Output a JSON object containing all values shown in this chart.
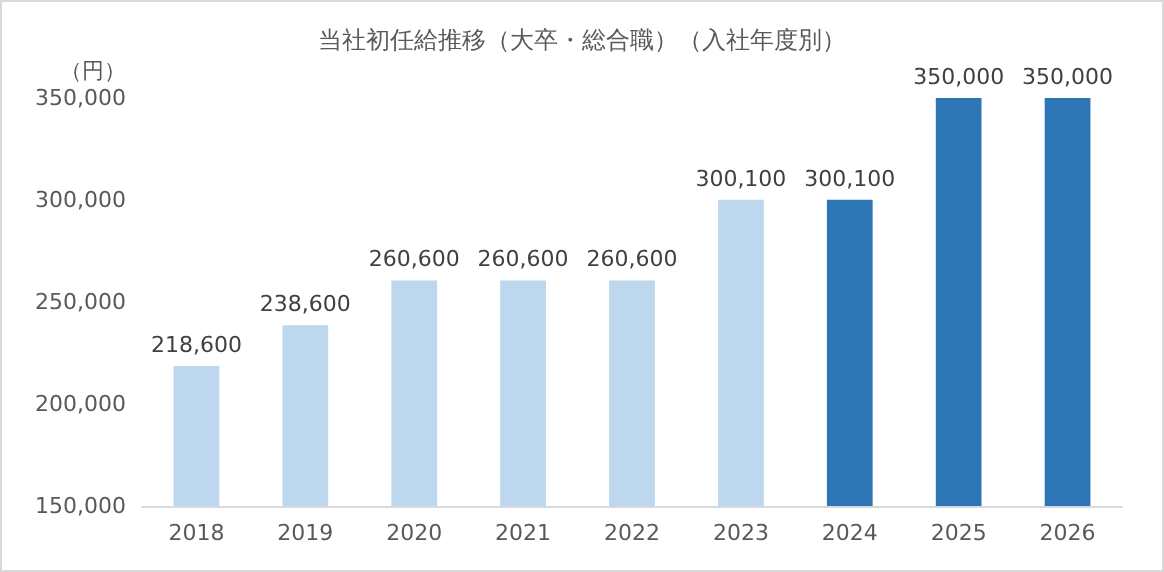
{
  "chart_data": {
    "type": "bar",
    "title": "当社初任給推移（大卒・総合職）（入社年度別）",
    "ylabel": "（円）",
    "categories": [
      "2018",
      "2019",
      "2020",
      "2021",
      "2022",
      "2023",
      "2024",
      "2025",
      "2026"
    ],
    "values": [
      218600,
      238600,
      260600,
      260600,
      260600,
      300100,
      300100,
      350000,
      350000
    ],
    "colors": [
      "#bdd7ee",
      "#bdd7ee",
      "#bdd7ee",
      "#bdd7ee",
      "#bdd7ee",
      "#bdd7ee",
      "#2e75b6",
      "#2e75b6",
      "#2e75b6"
    ],
    "value_labels": [
      "218,600",
      "238,600",
      "260,600",
      "260,600",
      "260,600",
      "300,100",
      "300,100",
      "350,000",
      "350,000"
    ],
    "ylim": [
      150000,
      350000
    ],
    "yticks": [
      {
        "value": 150000,
        "label": "150,000"
      },
      {
        "value": 200000,
        "label": "200,000"
      },
      {
        "value": 250000,
        "label": "250,000"
      },
      {
        "value": 300000,
        "label": "300,000"
      },
      {
        "value": 350000,
        "label": "350,000"
      }
    ],
    "grid": false
  }
}
